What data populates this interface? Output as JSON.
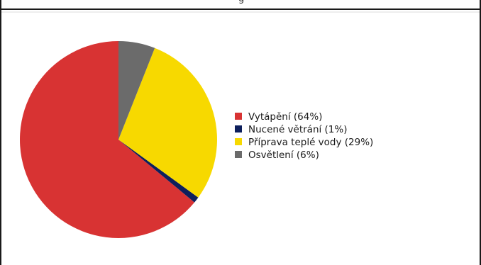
{
  "header": {
    "partial_text": "g"
  },
  "chart_data": {
    "type": "pie",
    "title": "",
    "slices": [
      {
        "label": "Vytápění (64%)",
        "value": 64,
        "color": "#d83333"
      },
      {
        "label": "Nucené větrání (1%)",
        "value": 1,
        "color": "#0d1f5c"
      },
      {
        "label": "Příprava teplé vody (29%)",
        "value": 29,
        "color": "#f7d900"
      },
      {
        "label": "Osvětlení (6%)",
        "value": 6,
        "color": "#6b6b6b"
      }
    ],
    "legend_position": "right",
    "start": "top",
    "direction": "counter-clockwise"
  }
}
